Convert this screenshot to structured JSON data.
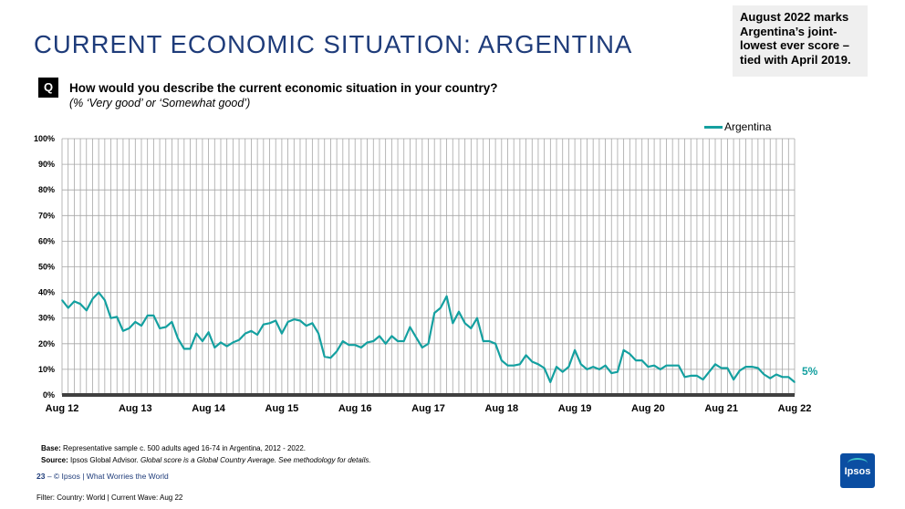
{
  "title": "CURRENT ECONOMIC SITUATION: ARGENTINA",
  "callout": "August 2022 marks Argentina’s joint-lowest ever score – tied with April 2019.",
  "question": {
    "badge": "Q",
    "text": "How would you describe the current economic situation in your country?",
    "subtext": "(% ‘Very good’ or ‘Somewhat good’)"
  },
  "footer": {
    "base_label": "Base:",
    "base_text": "Representative sample c. 500 adults aged 16-74 in Argentina, 2012 - 2022.",
    "source_label": "Source:",
    "source_text": "Ipsos Global Advisor.",
    "source_italic": "Global score is a Global Country Average. See methodology for details.",
    "page_number": "23",
    "page_text": "– © Ipsos | What Worries the World",
    "filter": "Filter: Country: World | Current Wave: Aug 22",
    "logo_text": "Ipsos"
  },
  "colors": {
    "series": "#14a0a0",
    "title": "#1f3c7a",
    "grid": "#a6a6a6",
    "axis": "#404040",
    "logo": "#0b4ea2"
  },
  "chart_data": {
    "type": "line",
    "title": "",
    "xlabel": "",
    "ylabel": "",
    "ylim": [
      0,
      100
    ],
    "yticks": [
      "0%",
      "10%",
      "20%",
      "30%",
      "40%",
      "50%",
      "60%",
      "70%",
      "80%",
      "90%",
      "100%"
    ],
    "x_tick_labels": [
      "Aug 12",
      "Aug 13",
      "Aug 14",
      "Aug 15",
      "Aug 16",
      "Aug 17",
      "Aug 18",
      "Aug 19",
      "Aug 20",
      "Aug 21",
      "Aug 22"
    ],
    "legend": "top-right",
    "grid": true,
    "end_label": "5%",
    "series": [
      {
        "name": "Argentina",
        "values": [
          37,
          34,
          36.5,
          35.5,
          33,
          37.5,
          40,
          37,
          30,
          30.5,
          25,
          26,
          28.5,
          27,
          31,
          31,
          26,
          26.5,
          28.5,
          22,
          18,
          18,
          24,
          21,
          24.5,
          18.5,
          20.5,
          19,
          20.5,
          21.5,
          24,
          25,
          23.5,
          27.5,
          28,
          29,
          24,
          28.5,
          29.5,
          29,
          27,
          28,
          24,
          15,
          14.5,
          17,
          21,
          19.5,
          19.5,
          18.5,
          20.5,
          21,
          23,
          20,
          23,
          21,
          21,
          26.5,
          22.5,
          18.5,
          20,
          32,
          34,
          38.5,
          28,
          32.5,
          28,
          26,
          30,
          21,
          21,
          20,
          13.5,
          11.5,
          11.5,
          12,
          15.5,
          13,
          12,
          10.5,
          5,
          11,
          9,
          11,
          17.5,
          12,
          10,
          11,
          10,
          11.5,
          8.5,
          9,
          17.5,
          16,
          13.5,
          13.5,
          11,
          11.5,
          10,
          11.5,
          11.5,
          11.5,
          7,
          7.5,
          7.5,
          6,
          9,
          12,
          10.5,
          10.5,
          6,
          9.5,
          11,
          11,
          10.5,
          8,
          6.5,
          8,
          7,
          7,
          5
        ]
      }
    ]
  }
}
